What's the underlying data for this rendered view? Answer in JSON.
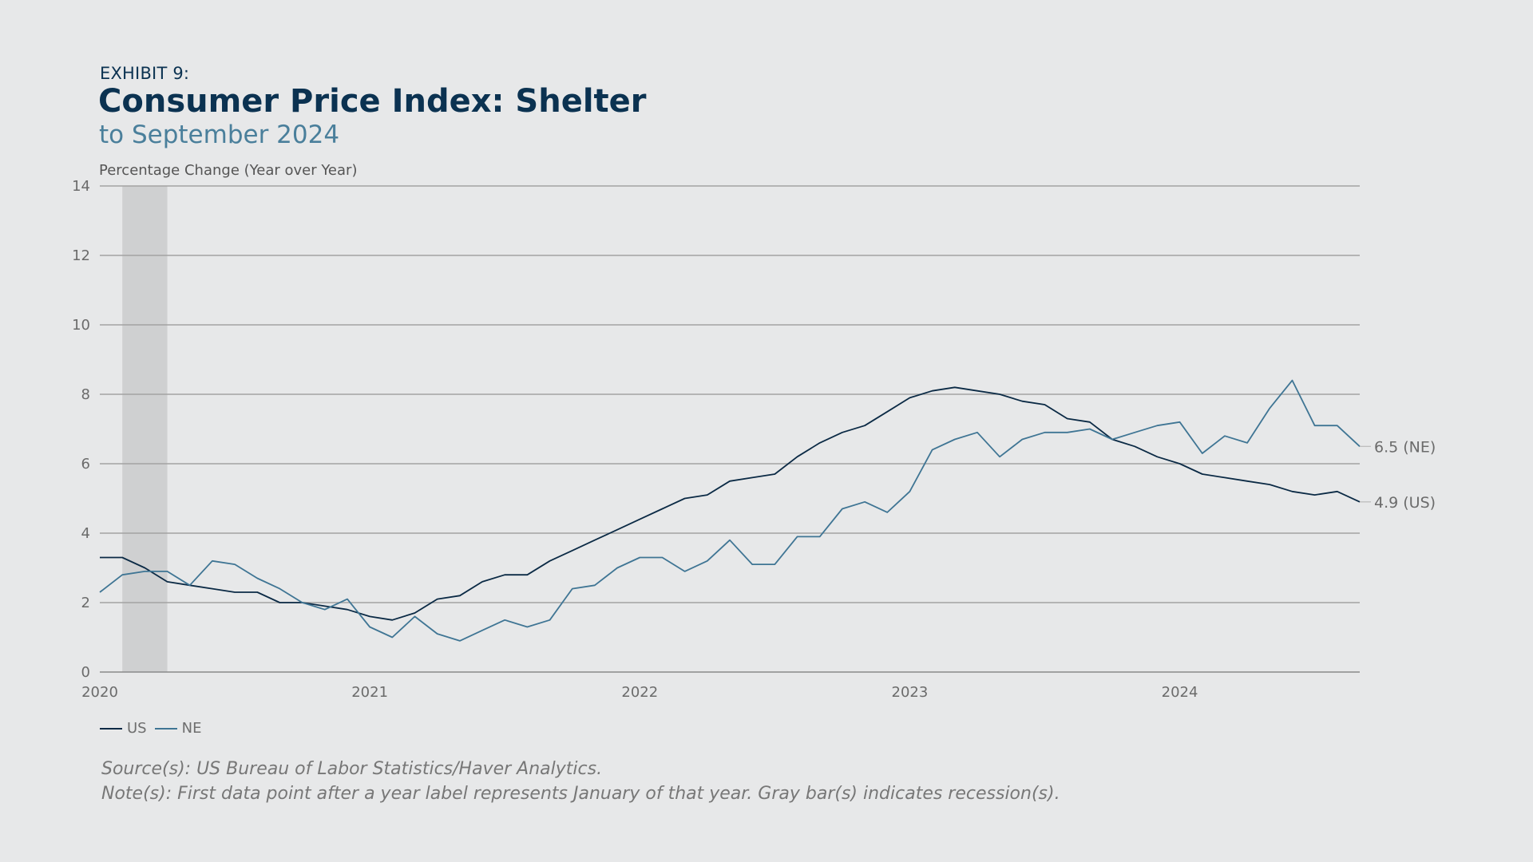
{
  "header": {
    "exhibit": "EXHIBIT 9:",
    "title": "Consumer Price Index: Shelter",
    "subtitle": "to September 2024"
  },
  "footer": {
    "source": "Source(s): US Bureau of Labor Statistics/Haver Analytics.",
    "note": "Note(s): First data point after a year label represents January of that year. Gray bar(s) indicates recession(s)."
  },
  "chart_data": {
    "type": "line",
    "title": "Consumer Price Index: Shelter",
    "subtitle": "to September 2024",
    "ylabel": "Percentage Change (Year over Year)",
    "xlabel": "",
    "ylim": [
      0,
      14
    ],
    "yticks": [
      0,
      2,
      4,
      6,
      8,
      10,
      12,
      14
    ],
    "xticks": [
      "2020",
      "2021",
      "2022",
      "2023",
      "2024"
    ],
    "x_start": "2020-01",
    "x_end": "2024-09",
    "frequency": "monthly",
    "grid": true,
    "legend_position": "bottom-left",
    "recession_shading": [
      {
        "start": "2020-02",
        "end": "2020-04"
      }
    ],
    "end_labels": [
      "6.5 (NE)",
      "4.9 (US)"
    ],
    "series": [
      {
        "name": "US",
        "color": "#0b2a45",
        "values": [
          3.3,
          3.3,
          3.0,
          2.6,
          2.5,
          2.4,
          2.3,
          2.3,
          2.0,
          2.0,
          1.9,
          1.8,
          1.6,
          1.5,
          1.7,
          2.1,
          2.2,
          2.6,
          2.8,
          2.8,
          3.2,
          3.5,
          3.8,
          4.1,
          4.4,
          4.7,
          5.0,
          5.1,
          5.5,
          5.6,
          5.7,
          6.2,
          6.6,
          6.9,
          7.1,
          7.5,
          7.9,
          8.1,
          8.2,
          8.1,
          8.0,
          7.8,
          7.7,
          7.3,
          7.2,
          6.7,
          6.5,
          6.2,
          6.0,
          5.7,
          5.6,
          5.5,
          5.4,
          5.2,
          5.1,
          5.2,
          4.9
        ]
      },
      {
        "name": "NE",
        "color": "#3f7594",
        "values": [
          2.3,
          2.8,
          2.9,
          2.9,
          2.5,
          3.2,
          3.1,
          2.7,
          2.4,
          2.0,
          1.8,
          2.1,
          1.3,
          1.0,
          1.6,
          1.1,
          0.9,
          1.2,
          1.5,
          1.3,
          1.5,
          2.4,
          2.5,
          3.0,
          3.3,
          3.3,
          2.9,
          3.2,
          3.8,
          3.1,
          3.1,
          3.9,
          3.9,
          4.7,
          4.9,
          4.6,
          5.2,
          6.4,
          6.7,
          6.9,
          6.2,
          6.7,
          6.9,
          6.9,
          7.0,
          6.7,
          6.9,
          7.1,
          7.2,
          6.3,
          6.8,
          6.6,
          7.6,
          8.4,
          7.1,
          7.1,
          6.5
        ]
      }
    ]
  }
}
